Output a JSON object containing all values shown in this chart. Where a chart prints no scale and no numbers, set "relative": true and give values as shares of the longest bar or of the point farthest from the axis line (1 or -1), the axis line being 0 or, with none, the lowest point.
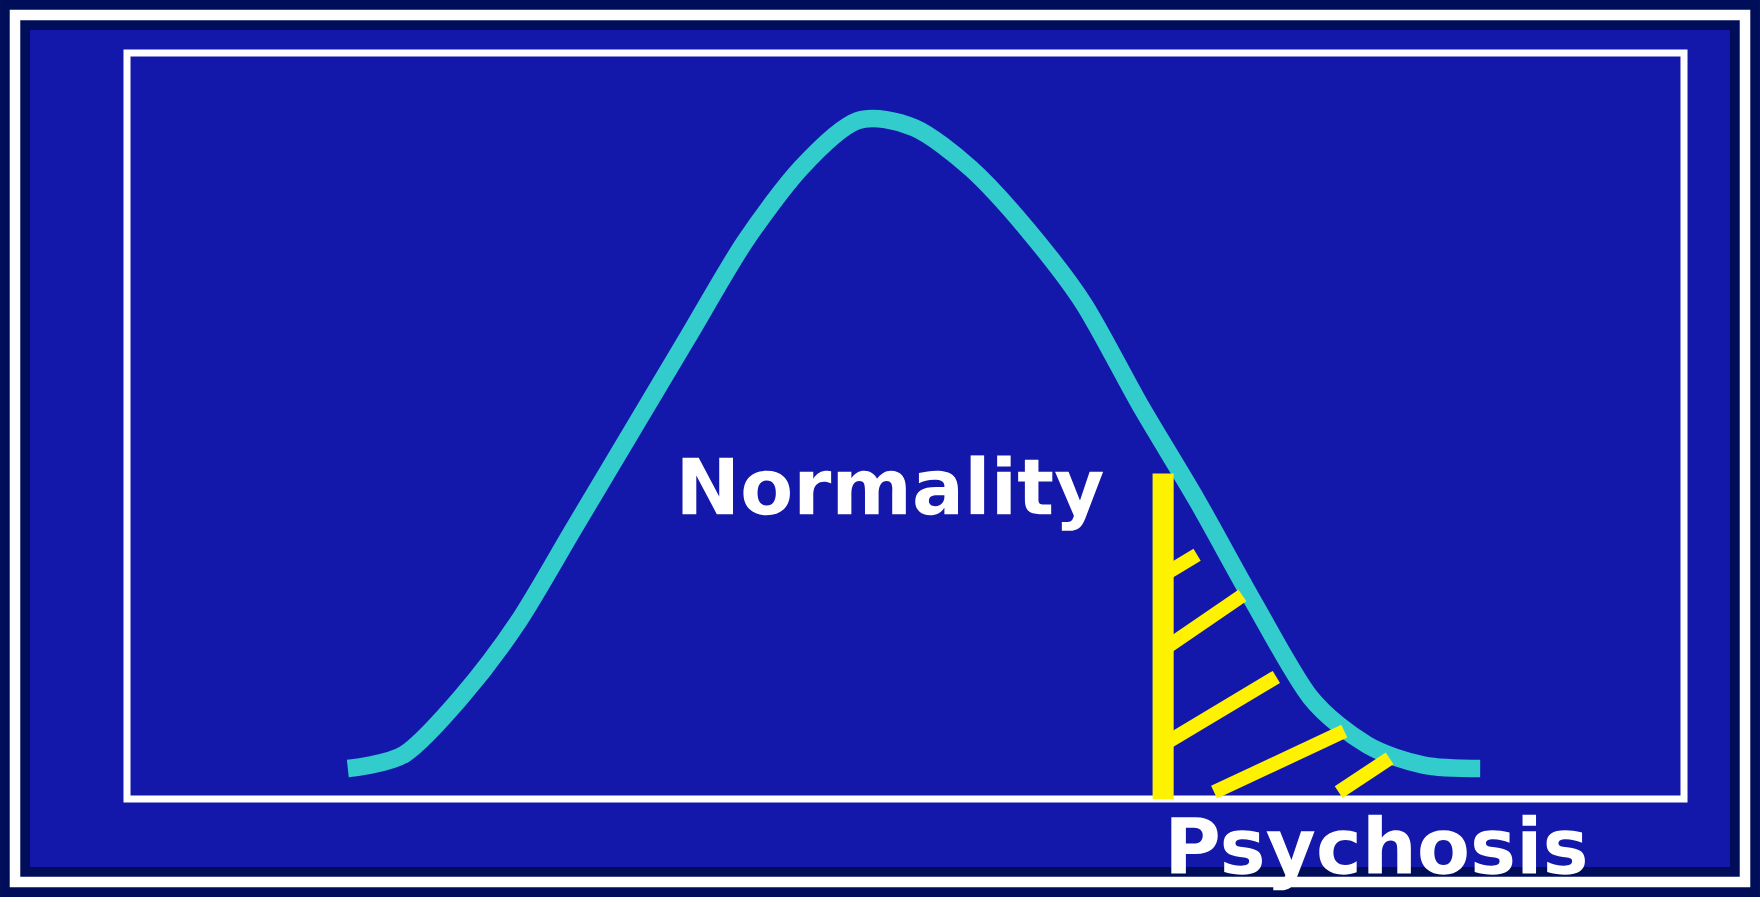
{
  "chart_data": {
    "type": "line",
    "relative": true,
    "categories": [
      null,
      null,
      null,
      null,
      null,
      null,
      null,
      null,
      null,
      null,
      null,
      null,
      null,
      null,
      null,
      null,
      null,
      null,
      null,
      null,
      null
    ],
    "values": [
      0.045,
      0.066,
      0.15,
      0.26,
      0.4,
      0.54,
      0.68,
      0.82,
      0.93,
      1.0,
      0.99,
      0.93,
      0.84,
      0.73,
      0.58,
      0.44,
      0.29,
      0.15,
      0.08,
      0.05,
      0.045
    ],
    "color": "#33cccc",
    "annotations": [
      "Normality",
      "Psychosis"
    ]
  }
}
